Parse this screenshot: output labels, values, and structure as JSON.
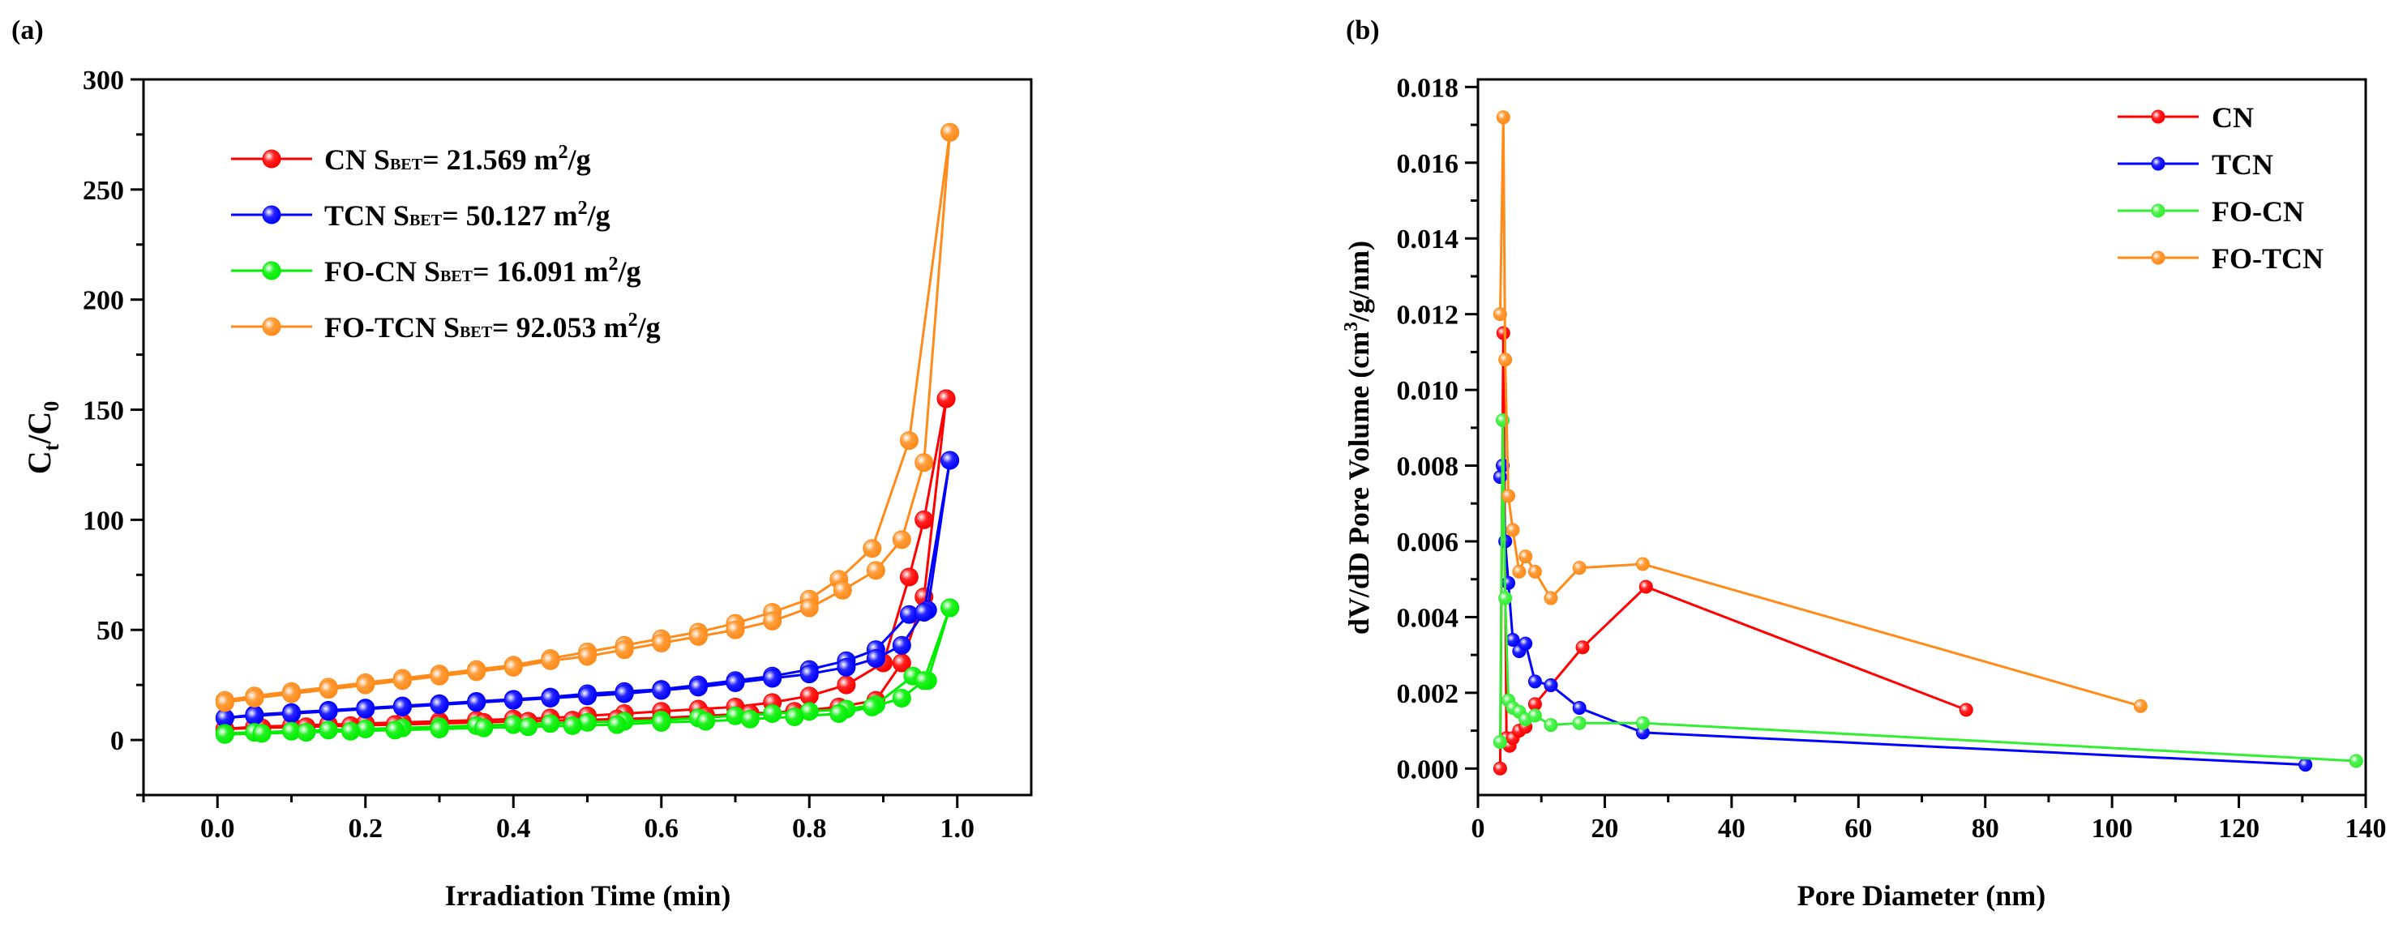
{
  "chart_data": [
    {
      "type": "line",
      "panel_label": "(a)",
      "xlabel": "Irradiation Time (min)",
      "ylabel_main": "C",
      "ylabel_sub1": "t",
      "ylabel_slash": "/C",
      "ylabel_sub2": "0",
      "xlim": [
        -0.1,
        1.1
      ],
      "ylim": [
        -25,
        300
      ],
      "xticks": [
        0.0,
        0.2,
        0.4,
        0.6,
        0.8,
        1.0
      ],
      "xtick_labels": [
        "0.0",
        "0.2",
        "0.4",
        "0.6",
        "0.8",
        "1.0"
      ],
      "yticks": [
        0,
        50,
        100,
        150,
        200,
        250,
        300
      ],
      "ytick_labels": [
        "0",
        "50",
        "100",
        "150",
        "200",
        "250",
        "300"
      ],
      "legend_position": "top-left",
      "series": [
        {
          "name": "CN",
          "legend_prefix": "CN S",
          "legend_sub": "BET",
          "legend_value": "= 21.569 m",
          "legend_sup": "2",
          "legend_unit": "/g",
          "color": "#ff0000",
          "branches": [
            {
              "x": [
                0.01,
                0.05,
                0.1,
                0.15,
                0.2,
                0.25,
                0.3,
                0.35,
                0.4,
                0.45,
                0.5,
                0.55,
                0.6,
                0.65,
                0.7,
                0.75,
                0.8,
                0.85,
                0.9,
                0.935,
                0.955,
                0.985
              ],
              "y": [
                5,
                6,
                6.5,
                7,
                7.5,
                8,
                8.5,
                9,
                9.5,
                10,
                11,
                12,
                13,
                14,
                15,
                17,
                20,
                25,
                35,
                74,
                100,
                155
              ]
            },
            {
              "x": [
                0.01,
                0.06,
                0.12,
                0.18,
                0.24,
                0.3,
                0.36,
                0.42,
                0.48,
                0.54,
                0.6,
                0.66,
                0.72,
                0.78,
                0.84,
                0.89,
                0.925,
                0.955,
                0.985
              ],
              "y": [
                5,
                5.5,
                6,
                6.5,
                7,
                7.5,
                8,
                8.5,
                9,
                9.5,
                10,
                11,
                12,
                13,
                15,
                18,
                35,
                65,
                155
              ]
            }
          ]
        },
        {
          "name": "TCN",
          "legend_prefix": "TCN S",
          "legend_sub": "BET",
          "legend_value": "= 50.127 m",
          "legend_sup": "2",
          "legend_unit": "/g",
          "color": "#0000ff",
          "branches": [
            {
              "x": [
                0.01,
                0.05,
                0.1,
                0.15,
                0.2,
                0.25,
                0.3,
                0.35,
                0.4,
                0.45,
                0.5,
                0.55,
                0.6,
                0.65,
                0.7,
                0.75,
                0.8,
                0.85,
                0.89,
                0.935,
                0.96,
                0.99
              ],
              "y": [
                10,
                11.5,
                12.5,
                13.5,
                14.5,
                15.5,
                16.5,
                17.5,
                18.5,
                19.5,
                21,
                22,
                23,
                25,
                27,
                29,
                32,
                36,
                41,
                57,
                59,
                127
              ]
            },
            {
              "x": [
                0.01,
                0.05,
                0.1,
                0.15,
                0.2,
                0.25,
                0.3,
                0.35,
                0.4,
                0.45,
                0.5,
                0.55,
                0.6,
                0.65,
                0.7,
                0.75,
                0.8,
                0.85,
                0.89,
                0.925,
                0.955,
                0.99
              ],
              "y": [
                10,
                11,
                12,
                13,
                14,
                15,
                16,
                17,
                18,
                19,
                20,
                21,
                22.5,
                24,
                26,
                28,
                30,
                33,
                37,
                43,
                58,
                127
              ]
            }
          ]
        },
        {
          "name": "FO-CN",
          "legend_prefix": "FO-CN S",
          "legend_sub": "BET",
          "legend_value": "= 16.091 m",
          "legend_sup": "2",
          "legend_unit": "/g",
          "color": "#00ee00",
          "branches": [
            {
              "x": [
                0.01,
                0.05,
                0.1,
                0.15,
                0.2,
                0.25,
                0.3,
                0.35,
                0.4,
                0.45,
                0.5,
                0.55,
                0.6,
                0.65,
                0.7,
                0.75,
                0.8,
                0.85,
                0.89,
                0.94,
                0.96,
                0.99
              ],
              "y": [
                3,
                3.5,
                4,
                4.5,
                5,
                5.5,
                6,
                6.5,
                7,
                7.5,
                8,
                8.5,
                9,
                10,
                11,
                12,
                13,
                14,
                16,
                29,
                27,
                60
              ]
            },
            {
              "x": [
                0.01,
                0.06,
                0.12,
                0.18,
                0.24,
                0.3,
                0.36,
                0.42,
                0.48,
                0.54,
                0.6,
                0.66,
                0.72,
                0.78,
                0.84,
                0.885,
                0.925,
                0.955,
                0.99
              ],
              "y": [
                2.5,
                3,
                3.5,
                4,
                4.5,
                5,
                5.5,
                6,
                6.5,
                7,
                8,
                8.5,
                9.5,
                10.5,
                12,
                15,
                19,
                27,
                60
              ]
            }
          ]
        },
        {
          "name": "FO-TCN",
          "legend_prefix": "FO-TCN S",
          "legend_sub": "BET",
          "legend_value": "= 92.053 m",
          "legend_sup": "2",
          "legend_unit": "/g",
          "color": "#ff8c1a",
          "branches": [
            {
              "x": [
                0.01,
                0.05,
                0.1,
                0.15,
                0.2,
                0.25,
                0.3,
                0.35,
                0.4,
                0.45,
                0.5,
                0.55,
                0.6,
                0.65,
                0.7,
                0.75,
                0.8,
                0.84,
                0.885,
                0.935,
                0.99
              ],
              "y": [
                18,
                20,
                22,
                24,
                26,
                28,
                30,
                32,
                34,
                37,
                40,
                43,
                46,
                49,
                53,
                58,
                64,
                73,
                87,
                136,
                276
              ]
            },
            {
              "x": [
                0.01,
                0.05,
                0.1,
                0.15,
                0.2,
                0.25,
                0.3,
                0.35,
                0.4,
                0.45,
                0.5,
                0.55,
                0.6,
                0.65,
                0.7,
                0.75,
                0.8,
                0.845,
                0.89,
                0.925,
                0.955,
                0.99
              ],
              "y": [
                17,
                19,
                21,
                23,
                25,
                27,
                29,
                31,
                33,
                36,
                38,
                41,
                44,
                47,
                50,
                54,
                60,
                68,
                77,
                91,
                126,
                276
              ]
            }
          ]
        }
      ]
    },
    {
      "type": "line",
      "panel_label": "(b)",
      "xlabel": "Pore Diameter (nm)",
      "ylabel_pre": "dV/dD Pore Volume (cm",
      "ylabel_sup": "3",
      "ylabel_post": "/g/nm)",
      "xlim": [
        0,
        140
      ],
      "ylim": [
        -0.0007,
        0.0182
      ],
      "xticks": [
        0,
        20,
        40,
        60,
        80,
        100,
        120,
        140
      ],
      "xtick_labels": [
        "0",
        "20",
        "40",
        "60",
        "80",
        "100",
        "120",
        "140"
      ],
      "yticks": [
        0.0,
        0.002,
        0.004,
        0.006,
        0.008,
        0.01,
        0.012,
        0.014,
        0.016,
        0.018
      ],
      "ytick_labels": [
        "0.000",
        "0.002",
        "0.004",
        "0.006",
        "0.008",
        "0.010",
        "0.012",
        "0.014",
        "0.016",
        "0.018"
      ],
      "legend_position": "top-right",
      "series": [
        {
          "name": "CN",
          "color": "#ff0000",
          "x": [
            3.5,
            4.0,
            4.5,
            5.0,
            5.5,
            6.5,
            7.5,
            9.0,
            11.5,
            16.5,
            26.5,
            77.0
          ],
          "y": [
            0.0,
            0.0115,
            0.0008,
            0.0006,
            0.0008,
            0.001,
            0.0011,
            0.0017,
            0.0022,
            0.0032,
            0.0048,
            0.00155
          ]
        },
        {
          "name": "TCN",
          "color": "#0000ff",
          "x": [
            3.5,
            3.9,
            4.3,
            4.8,
            5.5,
            6.5,
            7.5,
            9.0,
            11.5,
            16.0,
            26.0,
            130.5
          ],
          "y": [
            0.0077,
            0.008,
            0.006,
            0.0049,
            0.0034,
            0.0031,
            0.0033,
            0.0023,
            0.0022,
            0.0016,
            0.00095,
            0.0001
          ]
        },
        {
          "name": "FO-CN",
          "color": "#33ee33",
          "x": [
            3.5,
            3.9,
            4.3,
            4.8,
            5.5,
            6.5,
            7.5,
            9.0,
            11.5,
            16.0,
            26.0,
            138.5
          ],
          "y": [
            0.0007,
            0.0092,
            0.0045,
            0.0018,
            0.0016,
            0.0015,
            0.0013,
            0.0014,
            0.00115,
            0.0012,
            0.0012,
            0.0002
          ]
        },
        {
          "name": "FO-TCN",
          "color": "#ff8c1a",
          "x": [
            3.5,
            4.0,
            4.3,
            4.8,
            5.5,
            6.5,
            7.5,
            9.0,
            11.5,
            16.0,
            26.0,
            104.5
          ],
          "y": [
            0.012,
            0.0172,
            0.0108,
            0.0072,
            0.0063,
            0.0052,
            0.0056,
            0.0052,
            0.0045,
            0.0053,
            0.0054,
            0.00165
          ]
        }
      ]
    }
  ]
}
